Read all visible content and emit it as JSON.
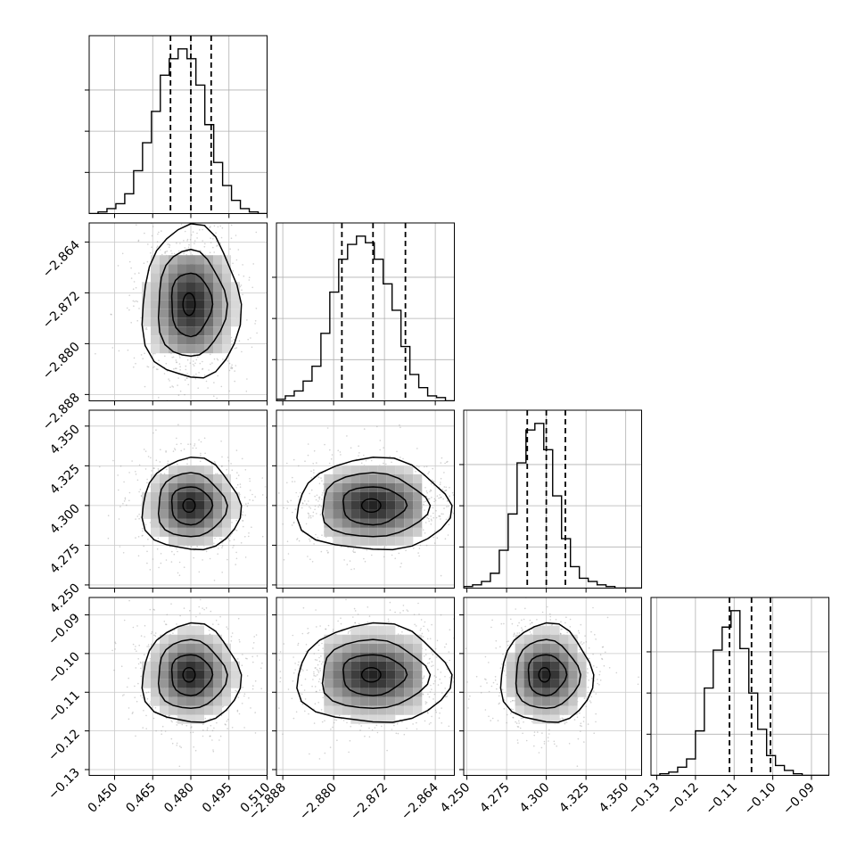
{
  "chart_data": {
    "type": "corner",
    "parameters": [
      {
        "id": "p1",
        "range": [
          0.44,
          0.51
        ],
        "ticks": [
          0.45,
          0.465,
          0.48,
          0.495,
          0.51
        ],
        "tick_labels": [
          "0.450",
          "0.465",
          "0.480",
          "0.495",
          "0.510"
        ],
        "quantiles": [
          0.472,
          0.48,
          0.488
        ],
        "hist": {
          "edges_start": 0.44,
          "bin_width": 0.0035,
          "counts": [
            0,
            1,
            3,
            6,
            12,
            26,
            43,
            62,
            84,
            94,
            100,
            94,
            78,
            54,
            31,
            17,
            8,
            3,
            1,
            0
          ]
        }
      },
      {
        "id": "p2",
        "range": [
          -2.889,
          -2.861
        ],
        "ticks": [
          -2.888,
          -2.88,
          -2.872,
          -2.864
        ],
        "tick_labels": [
          "−2.888",
          "−2.880",
          "−2.872",
          "−2.864"
        ],
        "quantiles": [
          -2.8787,
          -2.8738,
          -2.8687
        ],
        "hist": {
          "edges_start": -2.889,
          "bin_width": 0.0014,
          "counts": [
            1,
            3,
            6,
            12,
            21,
            41,
            66,
            86,
            95,
            100,
            96,
            86,
            71,
            55,
            33,
            16,
            8,
            3,
            2,
            0
          ]
        }
      },
      {
        "id": "p3",
        "range": [
          4.248,
          4.36
        ],
        "ticks": [
          4.25,
          4.275,
          4.3,
          4.325,
          4.35
        ],
        "tick_labels": [
          "4.250",
          "4.275",
          "4.300",
          "4.325",
          "4.350"
        ],
        "quantiles": [
          4.288,
          4.3,
          4.312
        ],
        "hist": {
          "edges_start": 4.248,
          "bin_width": 0.0056,
          "counts": [
            1,
            2,
            4,
            9,
            23,
            45,
            76,
            96,
            100,
            84,
            56,
            30,
            13,
            6,
            4,
            2,
            1,
            0,
            0,
            0
          ]
        }
      },
      {
        "id": "p4",
        "range": [
          -0.1315,
          -0.0855
        ],
        "ticks": [
          -0.13,
          -0.12,
          -0.11,
          -0.1,
          -0.09
        ],
        "tick_labels": [
          "−0.13",
          "−0.12",
          "−0.11",
          "−0.10",
          "−0.09"
        ],
        "quantiles": [
          -0.1112,
          -0.1055,
          -0.1006
        ],
        "hist": {
          "edges_start": -0.1315,
          "bin_width": 0.0023,
          "counts": [
            0,
            1,
            2,
            5,
            10,
            27,
            53,
            76,
            90,
            100,
            77,
            50,
            28,
            12,
            6,
            3,
            1,
            0,
            0,
            0
          ]
        }
      }
    ],
    "contour_levels": 3,
    "grid": true,
    "linestyle_quantiles": "dashed"
  }
}
